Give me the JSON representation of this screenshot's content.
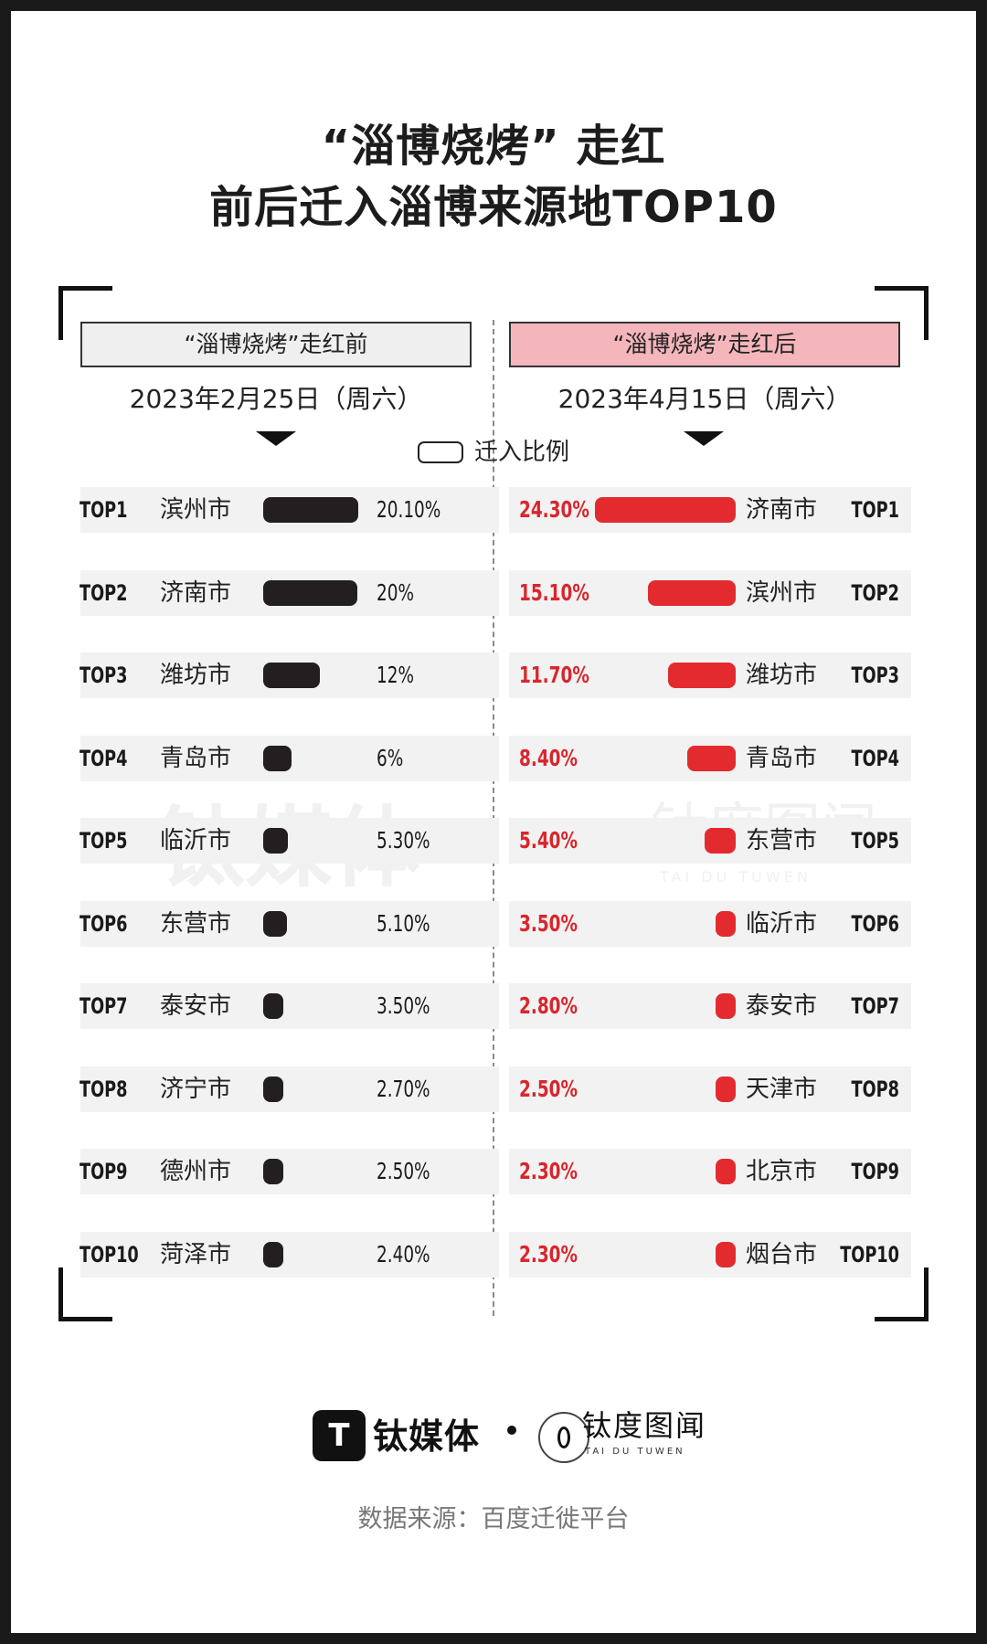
{
  "title_line1": "“淄博烧烤” 走红",
  "title_line2": "前后迁入淄博来源地TOP10",
  "chart_data": {
    "type": "bar",
    "legend": "迁入比例",
    "panels": [
      {
        "header": "“淄博烧烤”走红前",
        "date": "2023年2月25日（周六）",
        "rows": [
          {
            "rank": "TOP1",
            "city": "滨州市",
            "value": 20.1,
            "label": "20.10%"
          },
          {
            "rank": "TOP2",
            "city": "济南市",
            "value": 20,
            "label": "20%"
          },
          {
            "rank": "TOP3",
            "city": "潍坊市",
            "value": 12,
            "label": "12%"
          },
          {
            "rank": "TOP4",
            "city": "青岛市",
            "value": 6,
            "label": "6%"
          },
          {
            "rank": "TOP5",
            "city": "临沂市",
            "value": 5.3,
            "label": "5.30%"
          },
          {
            "rank": "TOP6",
            "city": "东营市",
            "value": 5.1,
            "label": "5.10%"
          },
          {
            "rank": "TOP7",
            "city": "泰安市",
            "value": 3.5,
            "label": "3.50%"
          },
          {
            "rank": "TOP8",
            "city": "济宁市",
            "value": 2.7,
            "label": "2.70%"
          },
          {
            "rank": "TOP9",
            "city": "德州市",
            "value": 2.5,
            "label": "2.50%"
          },
          {
            "rank": "TOP10",
            "city": "菏泽市",
            "value": 2.4,
            "label": "2.40%"
          }
        ]
      },
      {
        "header": "“淄博烧烤”走红后",
        "date": "2023年4月15日（周六）",
        "rows": [
          {
            "rank": "TOP1",
            "city": "济南市",
            "value": 24.3,
            "label": "24.30%"
          },
          {
            "rank": "TOP2",
            "city": "滨州市",
            "value": 15.1,
            "label": "15.10%"
          },
          {
            "rank": "TOP3",
            "city": "潍坊市",
            "value": 11.7,
            "label": "11.70%"
          },
          {
            "rank": "TOP4",
            "city": "青岛市",
            "value": 8.4,
            "label": "8.40%"
          },
          {
            "rank": "TOP5",
            "city": "东营市",
            "value": 5.4,
            "label": "5.40%"
          },
          {
            "rank": "TOP6",
            "city": "临沂市",
            "value": 3.5,
            "label": "3.50%"
          },
          {
            "rank": "TOP7",
            "city": "泰安市",
            "value": 2.8,
            "label": "2.80%"
          },
          {
            "rank": "TOP8",
            "city": "天津市",
            "value": 2.5,
            "label": "2.50%"
          },
          {
            "rank": "TOP9",
            "city": "北京市",
            "value": 2.3,
            "label": "2.30%"
          },
          {
            "rank": "TOP10",
            "city": "烟台市",
            "value": 2.3,
            "label": "2.30%"
          }
        ]
      }
    ],
    "colors": {
      "before": "#231f20",
      "after": "#e32b2f",
      "after_header": "#f4b6bb",
      "after_pct": "#d9262d"
    }
  },
  "footer": {
    "logo1_mark": "T",
    "logo1_text": "钛媒体",
    "logo2_text": "钛度图闻",
    "logo2_sub": "TAI DU TUWEN",
    "source": "数据来源：百度迁徙平台"
  },
  "watermark": {
    "text1": "钛媒体",
    "text2": "钛度图闻",
    "sub": "TAI DU TUWEN"
  }
}
